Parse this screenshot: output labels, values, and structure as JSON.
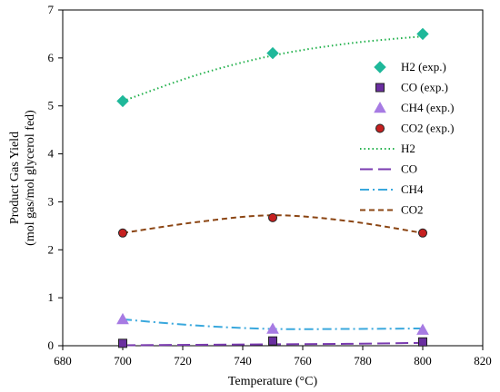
{
  "chart_data": {
    "type": "scatter",
    "xlabel": "Temperature (°C)",
    "ylabel_line1": "Product Gas Yield",
    "ylabel_line2": "(mol gas/mol glycerol fed)",
    "xlim": [
      680,
      820
    ],
    "ylim": [
      0,
      7
    ],
    "xticks": [
      680,
      700,
      720,
      740,
      760,
      780,
      800,
      820
    ],
    "yticks": [
      0,
      1,
      2,
      3,
      4,
      5,
      6,
      7
    ],
    "grid": false,
    "legend_position": "right",
    "experimental": [
      {
        "name": "H2 (exp.)",
        "marker": "diamond",
        "color": "#1fb89a",
        "x": [
          700,
          750,
          800
        ],
        "y": [
          5.1,
          6.1,
          6.5
        ]
      },
      {
        "name": "CO (exp.)",
        "marker": "square",
        "color": "#6a2ea0",
        "x": [
          700,
          750,
          800
        ],
        "y": [
          0.05,
          0.1,
          0.08
        ]
      },
      {
        "name": "CH4 (exp.)",
        "marker": "triangle",
        "color": "#a77be3",
        "x": [
          700,
          750,
          800
        ],
        "y": [
          0.55,
          0.35,
          0.33
        ]
      },
      {
        "name": "CO2 (exp.)",
        "marker": "circle",
        "color": "#c62020",
        "x": [
          700,
          750,
          800
        ],
        "y": [
          2.35,
          2.67,
          2.35
        ]
      }
    ],
    "models": [
      {
        "name": "H2",
        "dash": "dotted",
        "color": "#22b14c",
        "x": [
          700,
          725,
          750,
          775,
          800
        ],
        "y": [
          5.1,
          5.65,
          6.05,
          6.3,
          6.45
        ]
      },
      {
        "name": "CO",
        "dash": "longdash",
        "color": "#7a3bb0",
        "x": [
          700,
          725,
          750,
          775,
          800
        ],
        "y": [
          0.01,
          0.02,
          0.03,
          0.04,
          0.06
        ]
      },
      {
        "name": "CH4",
        "dash": "dashdot",
        "color": "#3aa8dd",
        "x": [
          700,
          725,
          750,
          775,
          800
        ],
        "y": [
          0.55,
          0.42,
          0.35,
          0.35,
          0.36
        ]
      },
      {
        "name": "CO2",
        "dash": "dash",
        "color": "#8b4513",
        "x": [
          700,
          725,
          750,
          775,
          800
        ],
        "y": [
          2.35,
          2.58,
          2.72,
          2.6,
          2.35
        ]
      }
    ]
  }
}
